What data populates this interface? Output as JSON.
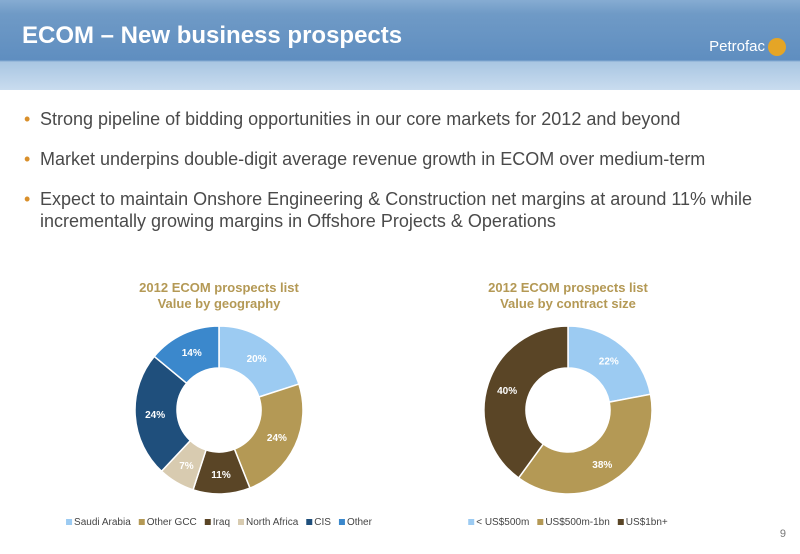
{
  "header": {
    "title": "ECOM – New business prospects",
    "logo": "Petrofac"
  },
  "bullets": [
    "Strong pipeline of bidding opportunities in our core markets for 2012 and beyond",
    "Market underpins double-digit average revenue growth in ECOM over medium-term",
    "Expect to maintain Onshore Engineering & Construction net margins at around 11% while incrementally growing margins in Offshore Projects & Operations"
  ],
  "chart_data": [
    {
      "type": "donut",
      "title": "2012 ECOM prospects list",
      "subtitle": "Value by geography",
      "categories": [
        "Saudi Arabia",
        "Other GCC",
        "Iraq",
        "North Africa",
        "CIS",
        "Other"
      ],
      "values": [
        20,
        24,
        11,
        7,
        24,
        14
      ],
      "value_labels": [
        "20%",
        "24%",
        "11%",
        "7%",
        "24%",
        "14%"
      ],
      "colors": [
        "#9ccbf2",
        "#b49955",
        "#5a4526",
        "#d8cbb0",
        "#1f4f7c",
        "#3b88cc"
      ]
    },
    {
      "type": "donut",
      "title": "2012 ECOM prospects list",
      "subtitle": "Value by contract size",
      "categories": [
        "< US$500m",
        "US$500m-1bn",
        "US$1bn+"
      ],
      "values": [
        22,
        38,
        40
      ],
      "value_labels": [
        "22%",
        "38%",
        "40%"
      ],
      "colors": [
        "#9ccbf2",
        "#b49955",
        "#5a4526"
      ]
    }
  ],
  "page_number": "9"
}
